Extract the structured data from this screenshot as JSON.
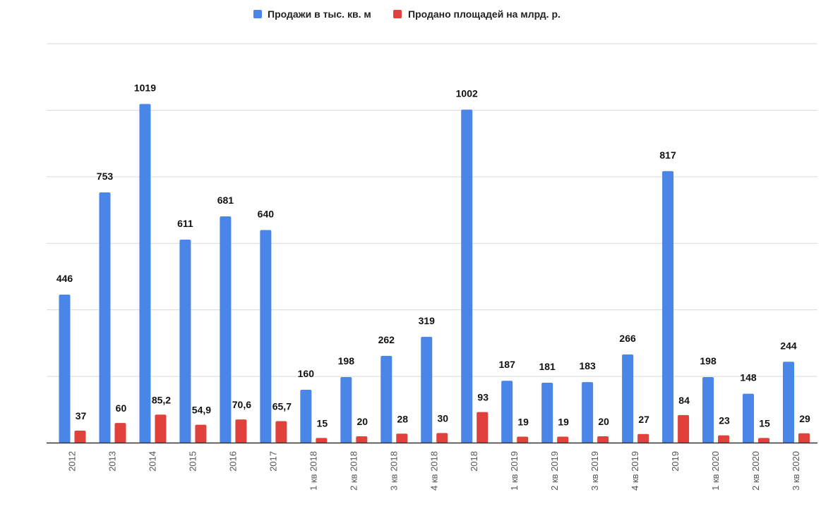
{
  "chart_data": {
    "type": "bar",
    "title": "",
    "xlabel": "",
    "ylabel": "",
    "ylim": [
      0,
      1200
    ],
    "grid": true,
    "legend_position": "top",
    "categories": [
      "2012",
      "2013",
      "2014",
      "2015",
      "2016",
      "2017",
      "1 кв 2018",
      "2 кв 2018",
      "3 кв 2018",
      "4 кв 2018",
      "2018",
      "1 кв 2019",
      "2 кв 2019",
      "3 кв 2019",
      "4 кв 2019",
      "2019",
      "1 кв 2020",
      "2 кв 2020",
      "3 кв 2020"
    ],
    "series": [
      {
        "name": "Продажи в тыс. кв. м",
        "color": "#4a86e8",
        "values": [
          446,
          753,
          1019,
          611,
          681,
          640,
          160,
          198,
          262,
          319,
          1002,
          187,
          181,
          183,
          266,
          817,
          198,
          148,
          244
        ],
        "labels": [
          "446",
          "753",
          "1019",
          "611",
          "681",
          "640",
          "160",
          "198",
          "262",
          "319",
          "1002",
          "187",
          "181",
          "183",
          "266",
          "817",
          "198",
          "148",
          "244"
        ]
      },
      {
        "name": "Продано площадей на млрд. р.",
        "color": "#e0413a",
        "values": [
          37,
          60,
          85.2,
          54.9,
          70.6,
          65.7,
          15,
          20,
          28,
          30,
          93,
          19,
          19,
          20,
          27,
          84,
          23,
          15,
          29
        ],
        "labels": [
          "37",
          "60",
          "85,2",
          "54,9",
          "70,6",
          "65,7",
          "15",
          "20",
          "28",
          "30",
          "93",
          "19",
          "19",
          "20",
          "27",
          "84",
          "23",
          "15",
          "29"
        ]
      }
    ]
  }
}
